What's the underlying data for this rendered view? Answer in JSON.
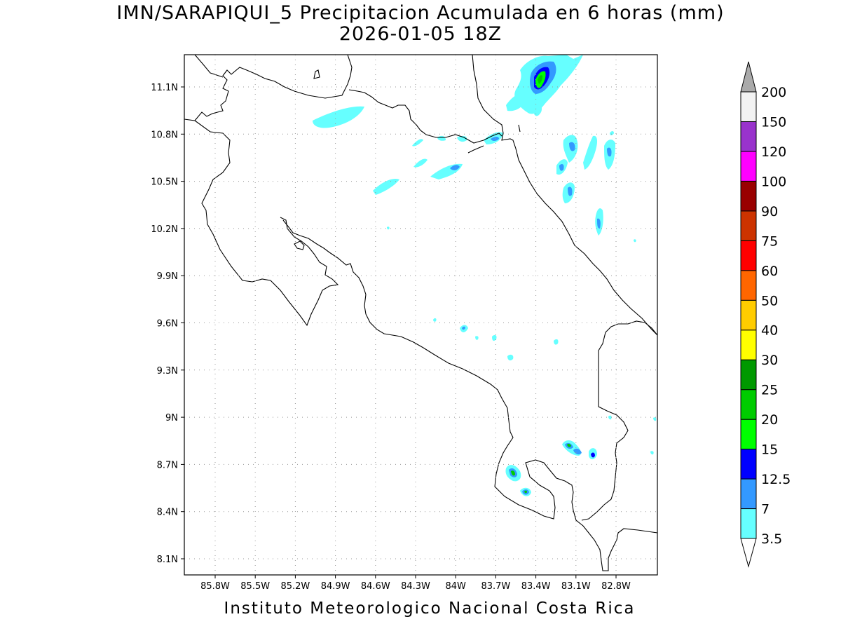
{
  "title": "IMN/SARAPIQUI_5 Precipitacion Acumulada en 6 horas (mm)",
  "subtitle": "2026-01-05 18Z",
  "footer": "Instituto Meteorologico Nacional Costa Rica",
  "map": {
    "lon_range": [
      -86.0,
      -82.6
    ],
    "lat_range": [
      8.0,
      11.3
    ],
    "x_ticks": [
      "85.8W",
      "85.5W",
      "85.2W",
      "84.9W",
      "84.6W",
      "84.3W",
      "84W",
      "83.7W",
      "83.4W",
      "83.1W",
      "82.8W"
    ],
    "y_ticks": [
      "11.1N",
      "10.8N",
      "10.5N",
      "10.2N",
      "9.9N",
      "9.6N",
      "9.3N",
      "9N",
      "8.7N",
      "8.4N",
      "8.1N"
    ],
    "grid": "dotted"
  },
  "colorbar": {
    "labels": [
      "3.5",
      "7",
      "12.5",
      "15",
      "20",
      "25",
      "30",
      "40",
      "50",
      "60",
      "75",
      "90",
      "100",
      "120",
      "150",
      "200"
    ],
    "colors": [
      "#ffffff",
      "#66ffff",
      "#3399ff",
      "#0000ff",
      "#00ff00",
      "#00cc00",
      "#009900",
      "#ffff00",
      "#ffcc00",
      "#ff6600",
      "#ff0000",
      "#cc3300",
      "#990000",
      "#ff00ff",
      "#9933cc",
      "#f2f2f2",
      "#aaaaaa"
    ]
  }
}
